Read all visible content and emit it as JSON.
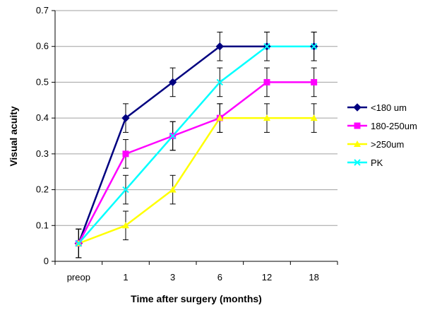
{
  "chart_data": {
    "type": "line",
    "xlabel": "Time after surgery (months)",
    "ylabel": "Visual acuity",
    "categories": [
      "preop",
      "1",
      "3",
      "6",
      "12",
      "18"
    ],
    "ylim": [
      0,
      0.7
    ],
    "yticks": [
      0,
      0.1,
      0.2,
      0.3,
      0.4,
      0.5,
      0.6,
      0.7
    ],
    "ytick_labels": [
      "0",
      "0.1",
      "0.2",
      "0.3",
      "0.4",
      "0.5",
      "0.6",
      "0.7"
    ],
    "grid": "horizontal",
    "legend_position": "right",
    "error_bar_halfwidth": 0.04,
    "series": [
      {
        "name": "<180 um",
        "values": [
          0.05,
          0.4,
          0.5,
          0.6,
          0.6,
          0.6
        ],
        "color": "#000080",
        "marker": "diamond"
      },
      {
        "name": "180-250um",
        "values": [
          0.05,
          0.3,
          0.35,
          0.4,
          0.5,
          0.5
        ],
        "color": "#FF00FF",
        "marker": "square"
      },
      {
        "name": ">250um",
        "values": [
          0.05,
          0.1,
          0.2,
          0.4,
          0.4,
          0.4
        ],
        "color": "#FFFF00",
        "marker": "triangle"
      },
      {
        "name": "PK",
        "values": [
          0.05,
          0.2,
          0.35,
          0.5,
          0.6,
          0.6
        ],
        "color": "#00FFFF",
        "marker": "x"
      }
    ]
  }
}
